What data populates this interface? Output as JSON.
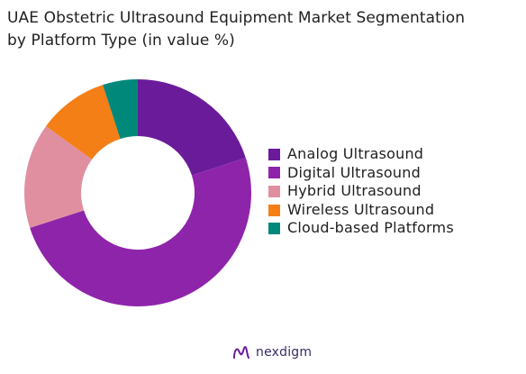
{
  "chart_data": {
    "type": "pie",
    "title": "UAE Obstetric Ultrasound Equipment Market Segmentation",
    "subtitle": "by Platform Type (in value %)",
    "categories": [
      "Analog Ultrasound",
      "Digital Ultrasound",
      "Hybrid Ultrasound",
      "Wireless Ultrasound",
      "Cloud-based Platforms"
    ],
    "values": [
      20,
      50,
      15,
      10,
      5
    ],
    "colors": [
      "#6a1b9a",
      "#8e24aa",
      "#e08fa1",
      "#f57f17",
      "#00897b"
    ],
    "donut": true,
    "legend_position": "right"
  },
  "brand": {
    "name": "nexdigm",
    "logo_icon": "nexdigm-logo-icon"
  }
}
